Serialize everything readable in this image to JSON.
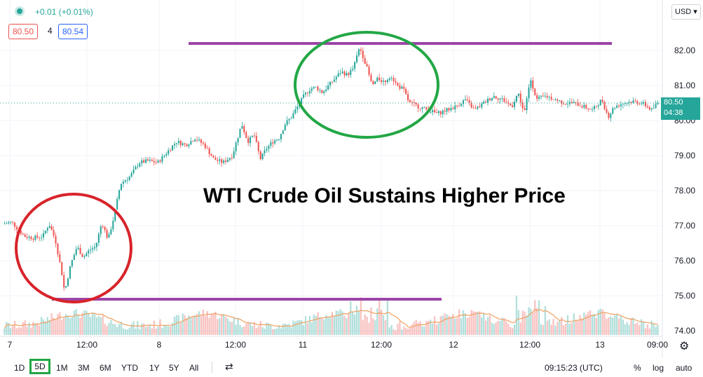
{
  "header": {
    "change_text": "+0.01 (+0.01%)",
    "bid": "80.50",
    "spread": "4",
    "ask": "80.54",
    "currency": "USD"
  },
  "price_tag": {
    "price": "80.50",
    "countdown": "04:38"
  },
  "annotation": {
    "headline": "WTI Crude Oil Sustains Higher Price"
  },
  "bottom_bar": {
    "ranges": [
      "1D",
      "5D",
      "1M",
      "3M",
      "6M",
      "YTD",
      "1Y",
      "5Y",
      "All"
    ],
    "selected_range": "5D",
    "time": "09:15:23 (UTC)",
    "percent": "%",
    "log": "log",
    "auto": "auto"
  },
  "colors": {
    "up": "#26a69a",
    "down": "#ef5350",
    "support_resistance": "#9c45a8",
    "circle_low": "#d8232a",
    "circle_high": "#22a745",
    "volume_ma": "#f0a060"
  },
  "chart_data": {
    "type": "candlestick",
    "title": "",
    "y_ticks": [
      "74.00",
      "75.00",
      "76.00",
      "77.00",
      "78.00",
      "79.00",
      "80.00",
      "81.00",
      "82.00"
    ],
    "x_ticks": [
      "7",
      "12:00",
      "8",
      "12:00",
      "11",
      "12:00",
      "12",
      "12:00",
      "13",
      "09:00"
    ],
    "ylim": [
      74.0,
      83.0
    ],
    "price_path": [
      {
        "t": 0,
        "p": 77.05
      },
      {
        "t": 3,
        "p": 77.1
      },
      {
        "t": 5,
        "p": 76.9
      },
      {
        "t": 7,
        "p": 76.7
      },
      {
        "t": 10,
        "p": 76.65
      },
      {
        "t": 13,
        "p": 76.7
      },
      {
        "t": 15,
        "p": 77.05
      },
      {
        "t": 17,
        "p": 76.6
      },
      {
        "t": 19,
        "p": 75.7
      },
      {
        "t": 20,
        "p": 75.1
      },
      {
        "t": 22,
        "p": 75.9
      },
      {
        "t": 24,
        "p": 76.4
      },
      {
        "t": 26,
        "p": 76.1
      },
      {
        "t": 28,
        "p": 76.3
      },
      {
        "t": 30,
        "p": 76.4
      },
      {
        "t": 32,
        "p": 77.1
      },
      {
        "t": 34,
        "p": 76.6
      },
      {
        "t": 36,
        "p": 77.3
      },
      {
        "t": 38,
        "p": 78.2
      },
      {
        "t": 41,
        "p": 78.4
      },
      {
        "t": 44,
        "p": 78.8
      },
      {
        "t": 47,
        "p": 78.85
      },
      {
        "t": 50,
        "p": 78.8
      },
      {
        "t": 53,
        "p": 79.1
      },
      {
        "t": 56,
        "p": 79.4
      },
      {
        "t": 59,
        "p": 79.3
      },
      {
        "t": 62,
        "p": 79.5
      },
      {
        "t": 65,
        "p": 79.3
      },
      {
        "t": 68,
        "p": 78.9
      },
      {
        "t": 71,
        "p": 78.8
      },
      {
        "t": 74,
        "p": 79.0
      },
      {
        "t": 77,
        "p": 79.9
      },
      {
        "t": 79,
        "p": 79.4
      },
      {
        "t": 81,
        "p": 79.6
      },
      {
        "t": 83,
        "p": 78.9
      },
      {
        "t": 85,
        "p": 79.2
      },
      {
        "t": 87,
        "p": 79.4
      },
      {
        "t": 89,
        "p": 79.5
      },
      {
        "t": 91,
        "p": 79.9
      },
      {
        "t": 93,
        "p": 80.1
      },
      {
        "t": 95,
        "p": 80.4
      },
      {
        "t": 97,
        "p": 80.7
      },
      {
        "t": 99,
        "p": 80.9
      },
      {
        "t": 101,
        "p": 80.95
      },
      {
        "t": 103,
        "p": 80.8
      },
      {
        "t": 105,
        "p": 81.0
      },
      {
        "t": 107,
        "p": 81.2
      },
      {
        "t": 109,
        "p": 81.4
      },
      {
        "t": 111,
        "p": 81.3
      },
      {
        "t": 113,
        "p": 81.5
      },
      {
        "t": 115,
        "p": 82.1
      },
      {
        "t": 117,
        "p": 81.6
      },
      {
        "t": 119,
        "p": 81.0
      },
      {
        "t": 121,
        "p": 81.2
      },
      {
        "t": 123,
        "p": 81.1
      },
      {
        "t": 125,
        "p": 81.3
      },
      {
        "t": 127,
        "p": 81.0
      },
      {
        "t": 129,
        "p": 80.9
      },
      {
        "t": 131,
        "p": 80.5
      },
      {
        "t": 134,
        "p": 80.4
      },
      {
        "t": 137,
        "p": 80.3
      },
      {
        "t": 140,
        "p": 80.2
      },
      {
        "t": 143,
        "p": 80.3
      },
      {
        "t": 146,
        "p": 80.4
      },
      {
        "t": 149,
        "p": 80.6
      },
      {
        "t": 152,
        "p": 80.3
      },
      {
        "t": 155,
        "p": 80.5
      },
      {
        "t": 158,
        "p": 80.7
      },
      {
        "t": 161,
        "p": 80.6
      },
      {
        "t": 164,
        "p": 80.4
      },
      {
        "t": 166,
        "p": 80.8
      },
      {
        "t": 168,
        "p": 80.2
      },
      {
        "t": 170,
        "p": 81.2
      },
      {
        "t": 172,
        "p": 80.6
      },
      {
        "t": 175,
        "p": 80.7
      },
      {
        "t": 178,
        "p": 80.6
      },
      {
        "t": 181,
        "p": 80.5
      },
      {
        "t": 184,
        "p": 80.5
      },
      {
        "t": 187,
        "p": 80.4
      },
      {
        "t": 190,
        "p": 80.3
      },
      {
        "t": 193,
        "p": 80.6
      },
      {
        "t": 195,
        "p": 80.1
      },
      {
        "t": 197,
        "p": 80.4
      },
      {
        "t": 200,
        "p": 80.5
      },
      {
        "t": 203,
        "p": 80.55
      },
      {
        "t": 206,
        "p": 80.5
      },
      {
        "t": 209,
        "p": 80.3
      },
      {
        "t": 211,
        "p": 80.5
      }
    ],
    "t_max": 211,
    "support_level": 74.9,
    "resistance_level": 82.2,
    "current_price": 80.5
  }
}
